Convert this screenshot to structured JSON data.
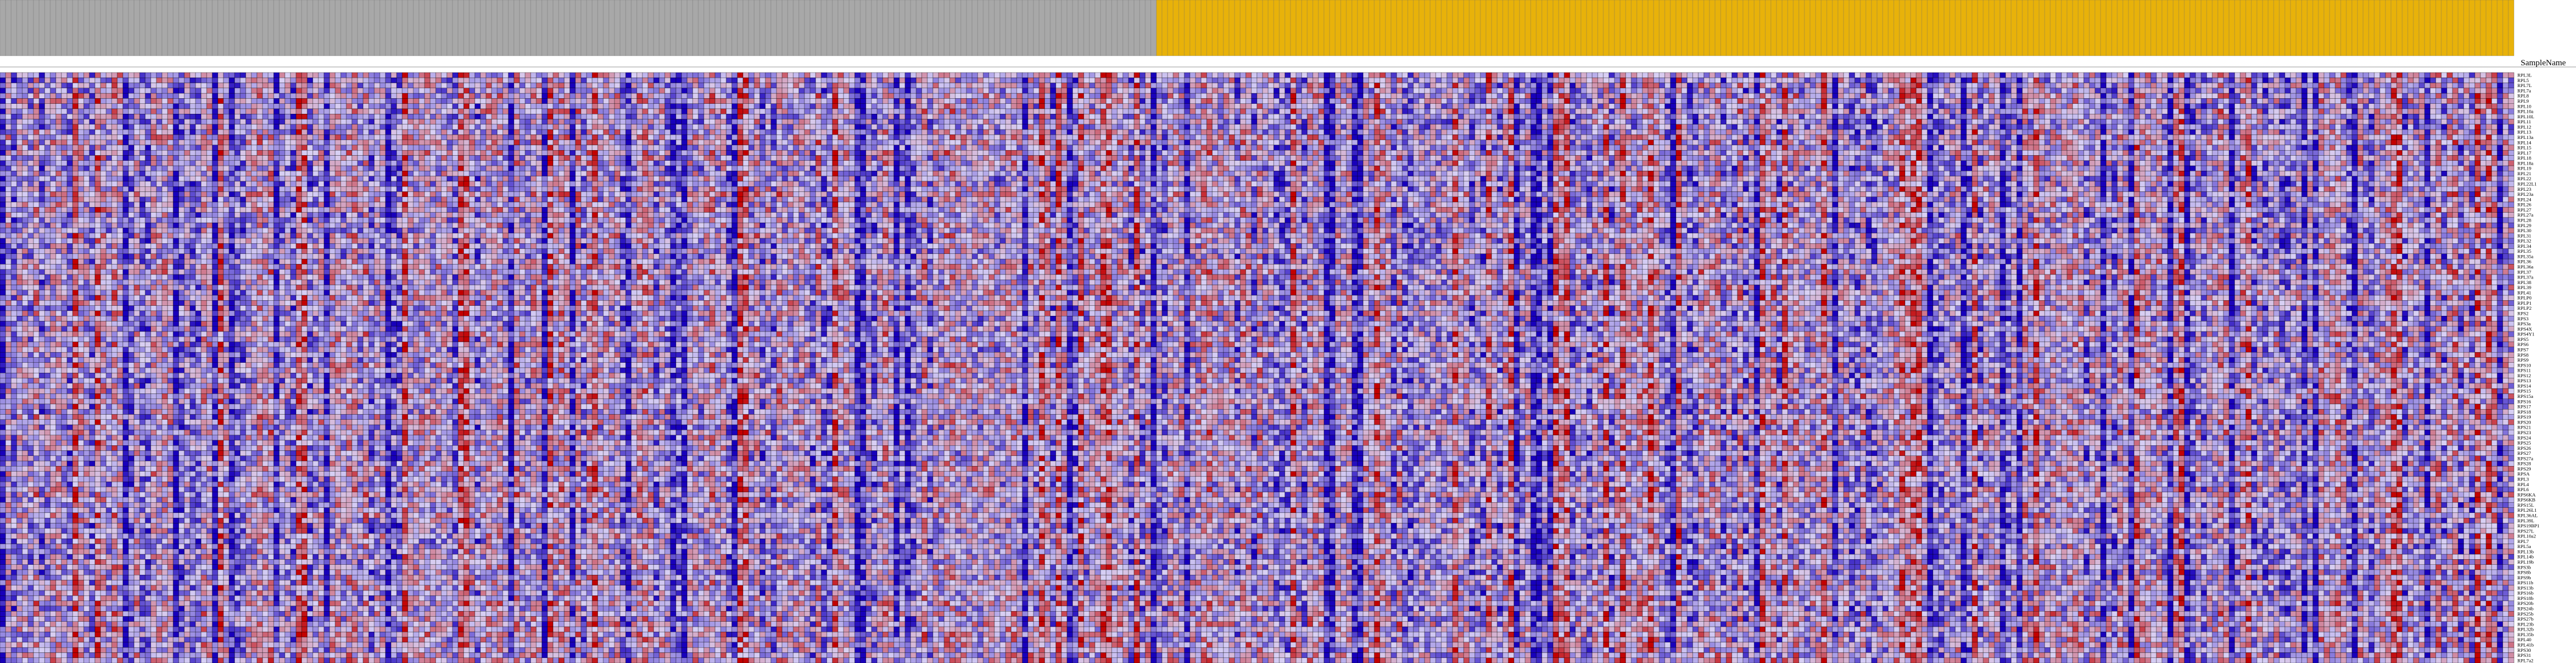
{
  "header": {
    "column_title": "SampleName"
  },
  "colors": {
    "group_a": "#a8a8a8",
    "group_b": "#e8b20a",
    "low": "#1800bb",
    "mid": "#d8d0f4",
    "high": "#c20000",
    "grid": "#000000"
  },
  "chart_data": {
    "type": "heatmap",
    "title": "",
    "xlabel": "",
    "ylabel": "",
    "n_columns": 450,
    "group_a_count": 207,
    "group_b_count": 243,
    "value_range": [
      -2,
      2
    ],
    "rows": [
      "RPL3L",
      "RPL5",
      "RPL7L",
      "RPL7a",
      "RPL8",
      "RPL9",
      "RPL10",
      "RPL10a",
      "RPL10L",
      "RPL11",
      "RPL12",
      "RPL13",
      "RPL13a",
      "RPL14",
      "RPL15",
      "RPL17",
      "RPL18",
      "RPL18a",
      "RPL19",
      "RPL21",
      "RPL22",
      "RPL22L1",
      "RPL23",
      "RPL23a",
      "RPL24",
      "RPL26",
      "RPL27",
      "RPL27a",
      "RPL28",
      "RPL29",
      "RPL30",
      "RPL31",
      "RPL32",
      "RPL34",
      "RPL35",
      "RPL35a",
      "RPL36",
      "RPL36a",
      "RPL37",
      "RPL37a",
      "RPL38",
      "RPL39",
      "RPL41",
      "RPLP0",
      "RPLP1",
      "RPLP2",
      "RPS2",
      "RPS3",
      "RPS3a",
      "RPS4X",
      "RPS4Y1",
      "RPS5",
      "RPS6",
      "RPS7",
      "RPS8",
      "RPS9",
      "RPS10",
      "RPS11",
      "RPS12",
      "RPS13",
      "RPS14",
      "RPS15",
      "RPS15a",
      "RPS16",
      "RPS17",
      "RPS18",
      "RPS19",
      "RPS20",
      "RPS21",
      "RPS23",
      "RPS24",
      "RPS25",
      "RPS26",
      "RPS27",
      "RPS27a",
      "RPS28",
      "RPS29",
      "RPSA",
      "RPL3",
      "RPL4",
      "RPL6",
      "RPS6KA",
      "RPS6KB",
      "RPS15L",
      "RPL26L1",
      "RPL36AL",
      "RPL39L",
      "RPS19BP1",
      "RPS27L",
      "RPL10a2",
      "RPL7",
      "RPL5a",
      "RPL13b",
      "RPL14b",
      "RPL19b",
      "RPS3b",
      "RPS8b",
      "RPS9b",
      "RPS11b",
      "RPS13b",
      "RPS16b",
      "RPS18b",
      "RPS20b",
      "RPS24b",
      "RPS25b",
      "RPS27b",
      "RPL23b",
      "RPL32b",
      "RPL35b",
      "RPL40",
      "RPL41b",
      "RPS30",
      "RPS31",
      "RPL7a2"
    ]
  }
}
